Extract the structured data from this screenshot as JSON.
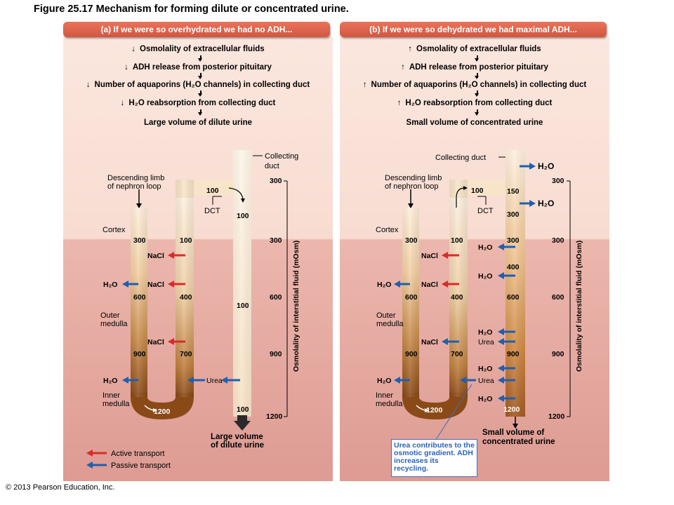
{
  "figure_title": "Figure 25.17  Mechanism for forming dilute or concentrated urine.",
  "copyright": "© 2013 Pearson Education, Inc.",
  "legend": {
    "active_label": "Active transport",
    "passive_label": "Passive transport",
    "active_color": "#d92b2b",
    "passive_color": "#1f5fae"
  },
  "panel_a": {
    "header": "(a) If we were so overhydrated we had no ADH...",
    "steps": [
      {
        "dir": "down",
        "text": "Osmolality of extracellular fluids"
      },
      {
        "dir": "down",
        "text": "ADH release from posterior pituitary"
      },
      {
        "dir": "down",
        "text": "Number of aquaporins (H₂O channels) in collecting duct"
      },
      {
        "dir": "down",
        "text": "H₂O reabsorption from collecting duct"
      },
      {
        "dir": "none",
        "text": "Large volume of dilute urine"
      }
    ],
    "labels": {
      "collecting_duct": "Collecting duct",
      "descending_limb": "Descending limb of nephron loop",
      "dct": "DCT",
      "cortex": "Cortex",
      "outer_medulla": "Outer medulla",
      "inner_medulla": "Inner medulla",
      "axis": "Osmolality of interstitial fluid (mOsm)",
      "outflow": "Large volume of dilute urine"
    },
    "descending_values": [
      "300",
      "600",
      "900"
    ],
    "ascending_values": [
      "100",
      "400",
      "700"
    ],
    "loop_bottom": "1200",
    "dct_value": "100",
    "duct_values": [
      "100",
      "100",
      "100"
    ],
    "axis_values": [
      "300",
      "300",
      "600",
      "900",
      "1200"
    ],
    "transport": {
      "nacl": "NaCl",
      "h2o": "H₂O",
      "urea": "Urea"
    }
  },
  "panel_b": {
    "header": "(b) If we were so dehydrated we had maximal ADH...",
    "steps": [
      {
        "dir": "up",
        "text": "Osmolality of extracellular fluids"
      },
      {
        "dir": "up",
        "text": "ADH release from posterior pituitary"
      },
      {
        "dir": "up",
        "text": "Number of aquaporins (H₂O channels) in collecting duct"
      },
      {
        "dir": "up",
        "text": "H₂O reabsorption from collecting duct"
      },
      {
        "dir": "none",
        "text": "Small volume of concentrated urine"
      }
    ],
    "labels": {
      "collecting_duct": "Collecting duct",
      "descending_limb": "Descending limb of nephron loop",
      "dct": "DCT",
      "cortex": "Cortex",
      "outer_medulla": "Outer medulla",
      "inner_medulla": "Inner medulla",
      "axis": "Osmolality of interstitial fluid (mOsm)",
      "outflow": "Small volume of concentrated urine"
    },
    "descending_values": [
      "300",
      "600",
      "900"
    ],
    "ascending_values": [
      "100",
      "400",
      "700"
    ],
    "loop_bottom": "1200",
    "dct_value": "100",
    "duct_values": [
      "150",
      "300",
      "300",
      "400",
      "600",
      "900",
      "1200"
    ],
    "axis_values": [
      "300",
      "300",
      "600",
      "900",
      "1200"
    ],
    "note": "Urea contributes to the osmotic gradient. ADH increases its recycling."
  }
}
